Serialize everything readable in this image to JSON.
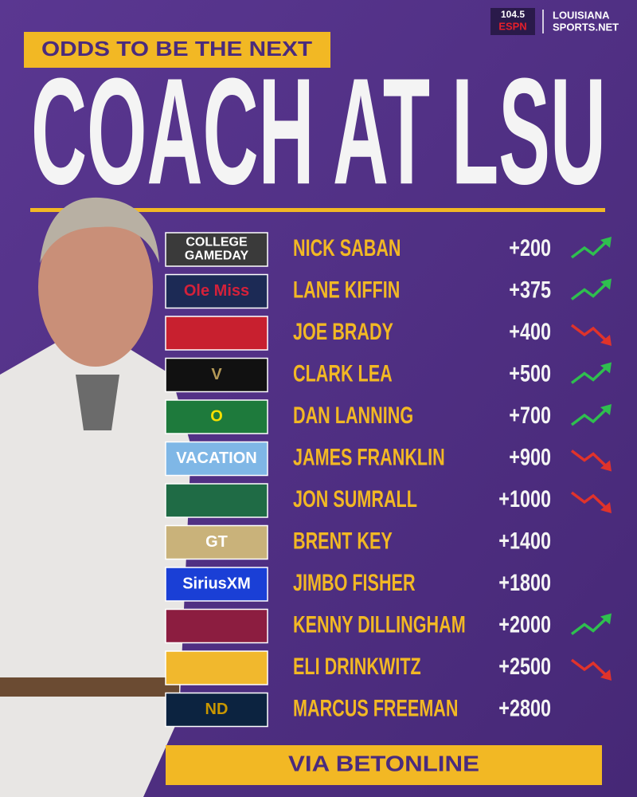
{
  "header": {
    "kicker": "ODDS TO BE THE NEXT",
    "title": "COACH AT LSU",
    "brands": [
      "104.5",
      "ESPN",
      "LOUISIANA",
      "SPORTS.NET"
    ]
  },
  "rows": [
    {
      "name": "NICK SABAN",
      "odds": "+200",
      "trend": "up",
      "tile": "#3a3a3a",
      "tile_ink": "#ffffff",
      "tile_text": [
        "COLLEGE",
        "GAMEDAY"
      ]
    },
    {
      "name": "LANE KIFFIN",
      "odds": "+375",
      "trend": "up",
      "tile": "#1c2a55",
      "tile_ink": "#d4213a",
      "tile_text": [
        "Ole Miss"
      ]
    },
    {
      "name": "JOE BRADY",
      "odds": "+400",
      "trend": "down",
      "tile": "#c8202f",
      "tile_ink": "#1b3f8f"
    },
    {
      "name": "CLARK LEA",
      "odds": "+500",
      "trend": "up",
      "tile": "#111111",
      "tile_ink": "#b59a57",
      "tile_text": [
        "V"
      ]
    },
    {
      "name": "DAN LANNING",
      "odds": "+700",
      "trend": "up",
      "tile": "#1e7a3c",
      "tile_ink": "#f5e000",
      "tile_text": [
        "O"
      ]
    },
    {
      "name": "JAMES FRANKLIN",
      "odds": "+900",
      "trend": "down",
      "tile": "#7fb7e6",
      "tile_ink": "#ffffff",
      "tile_text": [
        "VACATION"
      ]
    },
    {
      "name": "JON SUMRALL",
      "odds": "+1000",
      "trend": "down",
      "tile": "#1f6b45",
      "tile_ink": "#9fd3b6"
    },
    {
      "name": "BRENT KEY",
      "odds": "+1400",
      "trend": null,
      "tile": "#c9b27a",
      "tile_ink": "#ffffff",
      "tile_text": [
        "GT"
      ]
    },
    {
      "name": "JIMBO FISHER",
      "odds": "+1800",
      "trend": null,
      "tile": "#1a3fd6",
      "tile_ink": "#ffffff",
      "tile_text": [
        "SiriusXM"
      ]
    },
    {
      "name": "KENNY DILLINGHAM",
      "odds": "+2000",
      "trend": "up",
      "tile": "#8c1d40",
      "tile_ink": "#ffc627"
    },
    {
      "name": "ELI DRINKWITZ",
      "odds": "+2500",
      "trend": "down",
      "tile": "#f1b82d",
      "tile_ink": "#111111"
    },
    {
      "name": "MARCUS FREEMAN",
      "odds": "+2800",
      "trend": null,
      "tile": "#0c2340",
      "tile_ink": "#c99700",
      "tile_text": [
        "ND"
      ]
    }
  ],
  "footer": "VIA BETONLINE"
}
